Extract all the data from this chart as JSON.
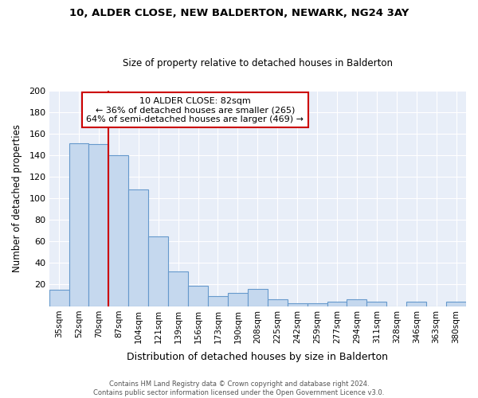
{
  "title1": "10, ALDER CLOSE, NEW BALDERTON, NEWARK, NG24 3AY",
  "title2": "Size of property relative to detached houses in Balderton",
  "xlabel": "Distribution of detached houses by size in Balderton",
  "ylabel": "Number of detached properties",
  "categories": [
    "35sqm",
    "52sqm",
    "70sqm",
    "87sqm",
    "104sqm",
    "121sqm",
    "139sqm",
    "156sqm",
    "173sqm",
    "190sqm",
    "208sqm",
    "225sqm",
    "242sqm",
    "259sqm",
    "277sqm",
    "294sqm",
    "311sqm",
    "328sqm",
    "346sqm",
    "363sqm",
    "380sqm"
  ],
  "values": [
    15,
    151,
    150,
    140,
    108,
    65,
    32,
    19,
    9,
    12,
    16,
    6,
    3,
    3,
    4,
    6,
    4,
    0,
    4,
    0,
    4
  ],
  "bar_color": "#c5d8ee",
  "bar_edge_color": "#6699cc",
  "background_color": "#ffffff",
  "plot_bg_color": "#e8eef8",
  "grid_color": "#ffffff",
  "vline_x": 3.0,
  "vline_color": "#cc0000",
  "annotation_text": "10 ALDER CLOSE: 82sqm\n← 36% of detached houses are smaller (265)\n64% of semi-detached houses are larger (469) →",
  "annotation_box_color": "#ffffff",
  "annotation_edge_color": "#cc0000",
  "footer_text": "Contains HM Land Registry data © Crown copyright and database right 2024.\nContains public sector information licensed under the Open Government Licence v3.0.",
  "ylim": [
    0,
    200
  ],
  "yticks": [
    0,
    20,
    40,
    60,
    80,
    100,
    120,
    140,
    160,
    180,
    200
  ]
}
